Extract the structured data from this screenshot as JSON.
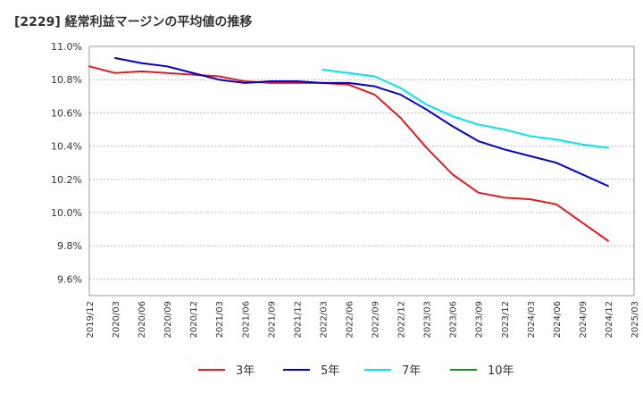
{
  "chart_data": {
    "type": "line",
    "title": "[2229]  経常利益マージンの平均値の推移",
    "xlabel": "",
    "ylabel": "",
    "ylim": [
      9.5,
      11.0
    ],
    "grid": "horizontal",
    "legend_placement": "bottom",
    "y_ticks": [
      "11.0%",
      "10.8%",
      "10.6%",
      "10.4%",
      "10.2%",
      "10.0%",
      "9.8%",
      "9.6%"
    ],
    "y_tick_values": [
      11.0,
      10.8,
      10.6,
      10.4,
      10.2,
      10.0,
      9.8,
      9.6
    ],
    "categories": [
      "2019/12",
      "2020/03",
      "2020/06",
      "2020/09",
      "2020/12",
      "2021/03",
      "2021/06",
      "2021/09",
      "2021/12",
      "2022/03",
      "2022/06",
      "2022/09",
      "2022/12",
      "2023/03",
      "2023/06",
      "2023/09",
      "2023/12",
      "2024/03",
      "2024/06",
      "2024/09",
      "2024/12",
      "2025/03"
    ],
    "series": [
      {
        "name": "3年",
        "color": "#e31a1c",
        "values": [
          10.88,
          10.84,
          10.85,
          10.84,
          10.83,
          10.82,
          10.79,
          10.78,
          10.78,
          10.78,
          10.77,
          10.71,
          10.57,
          10.39,
          10.23,
          10.12,
          10.09,
          10.08,
          10.05,
          9.94,
          9.83,
          null
        ]
      },
      {
        "name": "5年",
        "color": "#0000cc",
        "values": [
          null,
          10.93,
          10.9,
          10.88,
          10.84,
          10.8,
          10.78,
          10.79,
          10.79,
          10.78,
          10.78,
          10.76,
          10.71,
          10.62,
          10.52,
          10.43,
          10.38,
          10.34,
          10.3,
          10.23,
          10.16,
          null
        ]
      },
      {
        "name": "7年",
        "color": "#00e5ee",
        "values": [
          null,
          null,
          null,
          null,
          null,
          null,
          null,
          null,
          null,
          10.86,
          10.84,
          10.82,
          10.75,
          10.65,
          10.58,
          10.53,
          10.5,
          10.46,
          10.44,
          10.41,
          10.39,
          null
        ]
      },
      {
        "name": "10年",
        "color": "#228b22",
        "values": [
          null,
          null,
          null,
          null,
          null,
          null,
          null,
          null,
          null,
          null,
          null,
          null,
          null,
          null,
          null,
          null,
          null,
          null,
          null,
          null,
          null,
          null
        ]
      }
    ]
  }
}
